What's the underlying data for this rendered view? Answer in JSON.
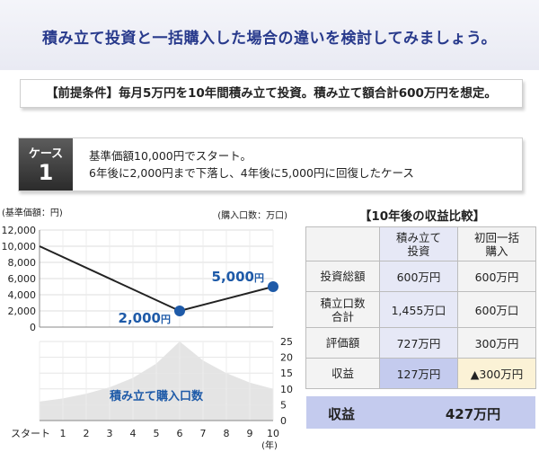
{
  "heading": "積み立て投資と一括購入した場合の違いを検討してみましょう。",
  "premise": "【前提条件】毎月5万円を10年間積み立て投資。積み立て額合計600万円を想定。",
  "case": {
    "label": "ケース",
    "number": "1",
    "lines": [
      "基準価額10,000円でスタート。",
      "6年後に2,000円まで下落し、4年後に5,000円に回復したケース"
    ]
  },
  "chart_data": {
    "type": "line",
    "title": "",
    "price_axis_label": "(基準価額：円)",
    "units_axis_label": "(購入口数：万口)",
    "x_unit_label": "(年)",
    "x_categories": [
      "スタート",
      "1",
      "2",
      "3",
      "4",
      "5",
      "6",
      "7",
      "8",
      "9",
      "10"
    ],
    "x_values": [
      0,
      1,
      2,
      3,
      4,
      5,
      6,
      7,
      8,
      9,
      10
    ],
    "price_ticks": [
      "0",
      "2,000",
      "4,000",
      "6,000",
      "8,000",
      "10,000",
      "12,000"
    ],
    "price_range": [
      0,
      12000
    ],
    "units_ticks": [
      "0",
      "5",
      "10",
      "15",
      "20",
      "25"
    ],
    "units_range": [
      0,
      25
    ],
    "price_series": [
      {
        "x": 0,
        "y": 10000
      },
      {
        "x": 6,
        "y": 2000
      },
      {
        "x": 10,
        "y": 5000
      }
    ],
    "price_point_labels": [
      {
        "x": 6,
        "y": 2000,
        "text": "2,000円",
        "value": "2,000",
        "unit": "円"
      },
      {
        "x": 10,
        "y": 5000,
        "text": "5,000円",
        "value": "5,000",
        "unit": "円"
      }
    ],
    "units_area_label": "積み立て購入口数",
    "units_series": [
      {
        "x": 0,
        "y": 6
      },
      {
        "x": 1,
        "y": 7
      },
      {
        "x": 2,
        "y": 8.5
      },
      {
        "x": 3,
        "y": 10.5
      },
      {
        "x": 4,
        "y": 13.5
      },
      {
        "x": 5,
        "y": 18
      },
      {
        "x": 6,
        "y": 25
      },
      {
        "x": 7,
        "y": 19
      },
      {
        "x": 8,
        "y": 15
      },
      {
        "x": 9,
        "y": 12
      },
      {
        "x": 10,
        "y": 10
      }
    ],
    "colors": {
      "line": "#222222",
      "marker": "#1e5aa8",
      "label": "#1e5aa8",
      "area": "#e4e4e4"
    }
  },
  "comparison": {
    "title": "【10年後の収益比較】",
    "columns": [
      "積み立て\n投資",
      "初回一括\n購入"
    ],
    "rows": [
      {
        "label": "投資総額",
        "values": [
          "600万円",
          "600万円"
        ]
      },
      {
        "label": "積立口数\n合計",
        "values": [
          "1,455万口",
          "600万口"
        ]
      },
      {
        "label": "評価額",
        "values": [
          "727万円",
          "300万円"
        ]
      },
      {
        "label": "収益",
        "values": [
          "127万円",
          "▲300万円"
        ]
      }
    ],
    "summary": {
      "label": "収益",
      "value": "427万円"
    }
  }
}
